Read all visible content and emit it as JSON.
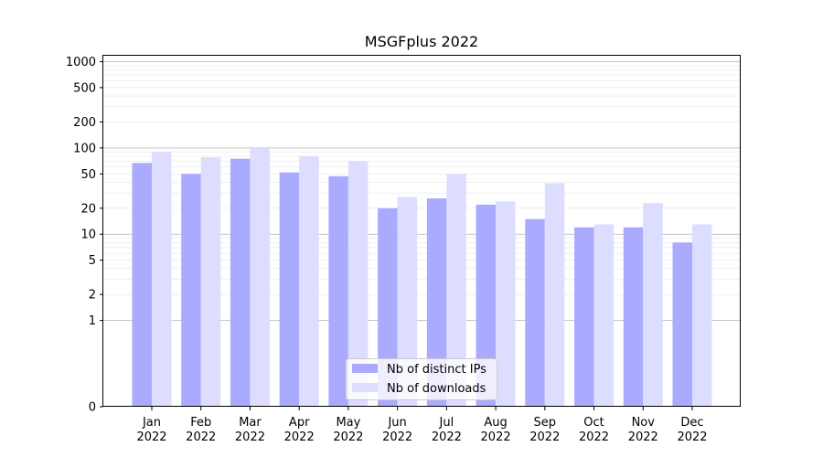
{
  "chart_data": {
    "type": "bar",
    "title": "MSGFplus 2022",
    "xlabel": "",
    "ylabel": "",
    "yscale": "symlog",
    "ylim": [
      0,
      1200
    ],
    "yticks": [
      0,
      1,
      2,
      5,
      10,
      20,
      50,
      100,
      200,
      500,
      1000
    ],
    "ytick_labels": [
      "0",
      "1",
      "2",
      "5",
      "10",
      "20",
      "50",
      "100",
      "200",
      "500",
      "1000"
    ],
    "categories": [
      "Jan\n2022",
      "Feb\n2022",
      "Mar\n2022",
      "Apr\n2022",
      "May\n2022",
      "Jun\n2022",
      "Jul\n2022",
      "Aug\n2022",
      "Sep\n2022",
      "Oct\n2022",
      "Nov\n2022",
      "Dec\n2022"
    ],
    "series": [
      {
        "name": "Nb of distinct IPs",
        "color": "#aaaaff",
        "values": [
          67,
          50,
          75,
          52,
          47,
          20,
          26,
          22,
          15,
          12,
          12,
          8
        ]
      },
      {
        "name": "Nb of downloads",
        "color": "#ddddff",
        "values": [
          90,
          78,
          100,
          80,
          70,
          27,
          50,
          24,
          39,
          13,
          23,
          13
        ]
      }
    ],
    "grid": true,
    "legend": "lower-center"
  }
}
